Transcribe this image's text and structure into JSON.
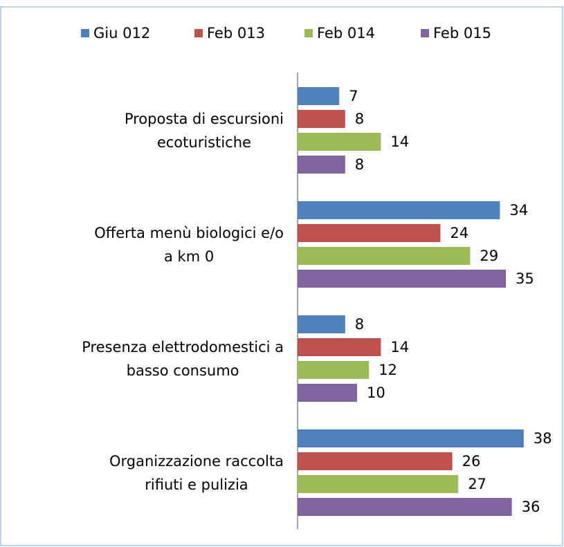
{
  "chart_data": {
    "type": "hbar",
    "categories": [
      "Proposta di escursioni\necoturistiche",
      "Offerta menù biologici e/o\na km 0",
      "Presenza elettrodomestici a\nbasso consumo",
      "Organizzazione raccolta\nrifiuti e pulizia"
    ],
    "series": [
      {
        "name": "Giu 012",
        "color": "#4f81bd",
        "values": [
          7,
          34,
          8,
          38
        ]
      },
      {
        "name": "Feb 013",
        "color": "#c0504d",
        "values": [
          8,
          24,
          14,
          26
        ]
      },
      {
        "name": "Feb 014",
        "color": "#9bbb59",
        "values": [
          14,
          29,
          12,
          27
        ]
      },
      {
        "name": "Feb 015",
        "color": "#8064a2",
        "values": [
          8,
          35,
          10,
          36
        ]
      }
    ],
    "legend": "top"
  }
}
